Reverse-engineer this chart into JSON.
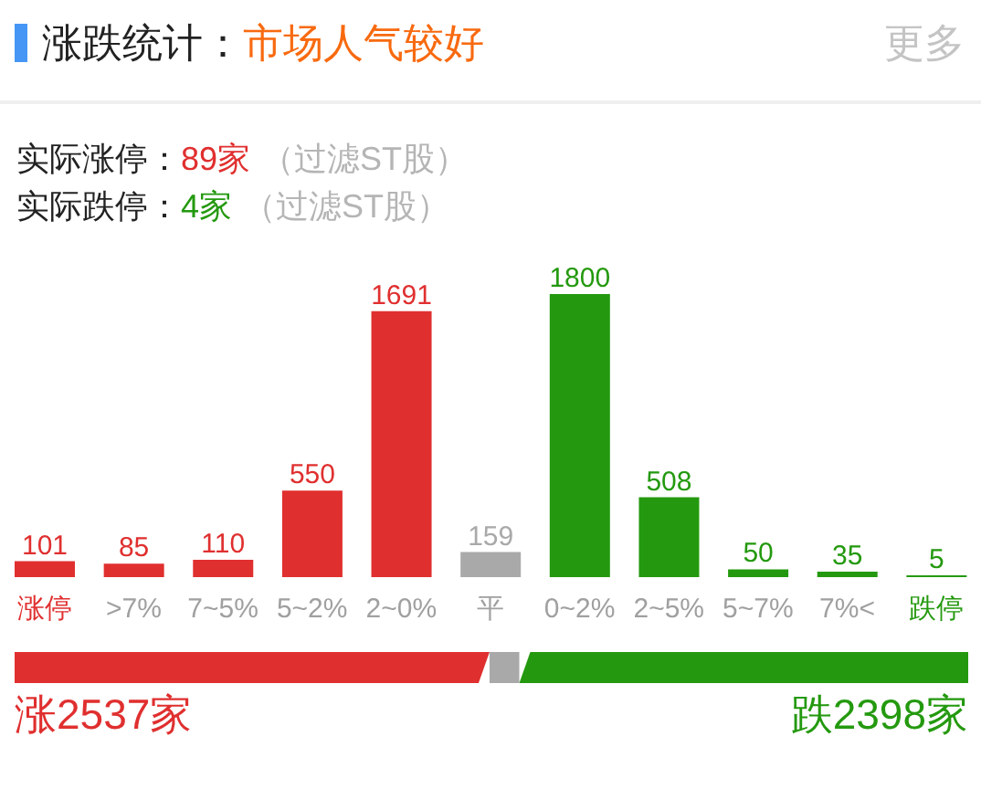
{
  "chart_data": [
    {
      "type": "bar",
      "title": "涨跌统计：",
      "subtitle": "市场人气较好",
      "annotations": [
        "更多",
        "实际涨停：",
        "89家",
        "（过滤ST股）",
        "实际跌停：",
        "4家",
        "（过滤ST股）"
      ],
      "categories": [
        "涨停",
        ">7%",
        "7~5%",
        "5~2%",
        "2~0%",
        "平",
        "0~2%",
        "2~5%",
        "5~7%",
        "7%<",
        "跌停"
      ],
      "values": [
        101,
        85,
        110,
        550,
        1691,
        159,
        1800,
        508,
        50,
        35,
        5
      ],
      "colors": [
        "#e02f2f",
        "#e02f2f",
        "#e02f2f",
        "#e02f2f",
        "#e02f2f",
        "#a9a9a9",
        "#24990f",
        "#24990f",
        "#24990f",
        "#24990f",
        "#24990f"
      ],
      "data_labels": true
    },
    {
      "type": "bar",
      "orientation": "horizontal",
      "stacked": true,
      "categories": [
        null
      ],
      "series": [
        {
          "color": "#e02f2f",
          "values": [
            2537
          ],
          "value_labels": [
            "涨2537家"
          ]
        },
        {
          "color": "#a9a9a9",
          "values": [
            159
          ]
        },
        {
          "color": "#24990f",
          "values": [
            2398
          ],
          "value_labels": [
            "跌2398家"
          ]
        }
      ]
    }
  ]
}
